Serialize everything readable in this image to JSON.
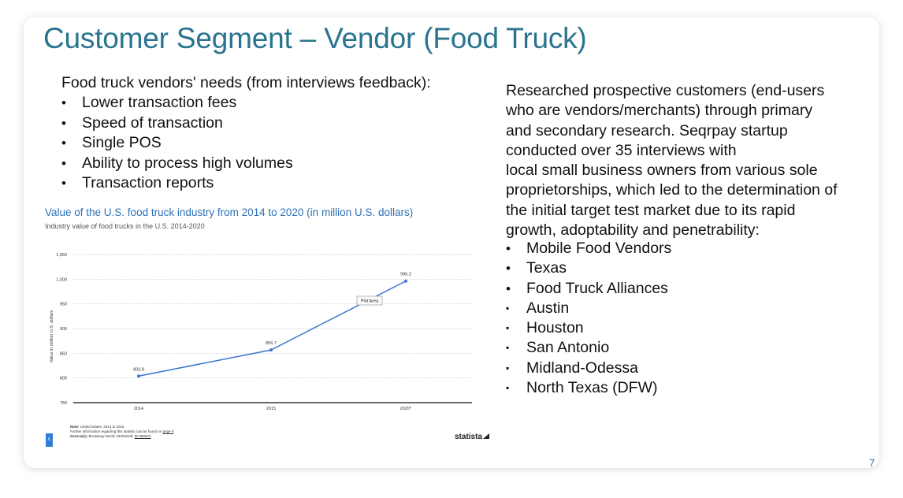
{
  "slide": {
    "title": "Customer Segment – Vendor (Food Truck)",
    "page_number": "7"
  },
  "needs": {
    "intro": "Food truck vendors' needs (from interviews feedback):",
    "items": [
      "Lower transaction fees",
      "Speed of transaction",
      "Single POS",
      "Ability to process high volumes",
      "Transaction reports"
    ]
  },
  "research": {
    "paragraph": "Researched prospective customers (end-users\nwho are vendors/merchants) through primary\nand secondary research.  Seqrpay startup\nconducted over 35 interviews with\nlocal small business owners from various sole\nproprietorships, which led to the determination of\nthe initial target test market due to its rapid\ngrowth, adoptability and penetrability:",
    "items": [
      {
        "text": "Mobile Food Vendors",
        "bullet": "•"
      },
      {
        "text": "Texas",
        "bullet": "•"
      },
      {
        "text": "Food Truck Alliances",
        "bullet": "•"
      },
      {
        "text": "Austin",
        "bullet": "▪"
      },
      {
        "text": "Houston",
        "bullet": "▪"
      },
      {
        "text": "San Antonio",
        "bullet": "▪"
      },
      {
        "text": "Midland-Odessa",
        "bullet": "▪"
      },
      {
        "text": "North Texas (DFW)",
        "bullet": "▪"
      }
    ]
  },
  "chart_data": {
    "type": "line",
    "title": "Value of the U.S. food truck industry from 2014 to 2020 (in million U.S. dollars)",
    "subtitle": "Industry value of food trucks in the U.S. 2014-2020",
    "categories": [
      "2014",
      "2015",
      "2020*"
    ],
    "series": [
      {
        "values": [
          803.8,
          856.7,
          996.2
        ]
      }
    ],
    "data_labels": [
      "803.8",
      "856.7",
      "996.2"
    ],
    "xlabel": "",
    "ylabel": "Value in million U.S. dollars",
    "ylim": [
      750,
      1050
    ],
    "yticks": [
      "750",
      "800",
      "850",
      "900",
      "950",
      "1,000",
      "1,050"
    ],
    "grid": true,
    "tooltip": "Plot Area",
    "line_color": "#3b74cf",
    "note_label": "Note:",
    "note": "United States; 2014 to 2015",
    "further_info": "Further information regarding this statistic can be found on",
    "further_info_link": "page 8",
    "source_label": "Source(s):",
    "source": "Broadway World; IBISWorld;",
    "source_id": "ID 808523",
    "page_badge": "6",
    "logo": "statista"
  },
  "colors": {
    "title": "#2a7490",
    "chart_title": "#2d71b8",
    "line": "#3b74cf"
  }
}
